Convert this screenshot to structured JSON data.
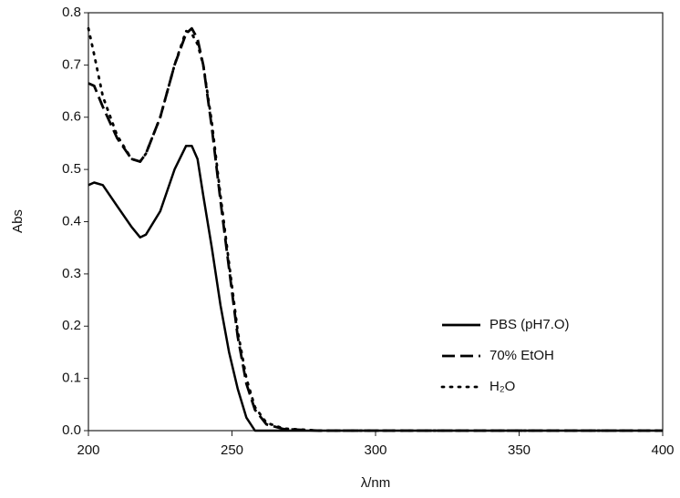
{
  "chart_data": {
    "type": "line",
    "x_label": "λ/nm",
    "y_label": "Abs",
    "x": [
      200,
      202,
      205,
      210,
      215,
      218,
      220,
      225,
      230,
      234,
      236,
      238,
      240,
      243,
      246,
      249,
      252,
      255,
      258,
      262,
      268,
      280,
      300,
      400
    ],
    "series": [
      {
        "name": "PBS (pH7.O)",
        "color": "#000000",
        "line_style": "solid",
        "values": [
          0.47,
          0.475,
          0.47,
          0.43,
          0.39,
          0.37,
          0.375,
          0.42,
          0.5,
          0.545,
          0.545,
          0.52,
          0.45,
          0.35,
          0.24,
          0.15,
          0.08,
          0.025,
          0,
          0,
          0,
          0,
          0,
          0
        ]
      },
      {
        "name": "70% EtOH",
        "color": "#000000",
        "line_style": "dashed",
        "values": [
          0.665,
          0.66,
          0.62,
          0.56,
          0.52,
          0.515,
          0.53,
          0.6,
          0.7,
          0.76,
          0.77,
          0.75,
          0.7,
          0.58,
          0.44,
          0.31,
          0.18,
          0.09,
          0.04,
          0.012,
          0.003,
          0,
          0,
          0
        ]
      },
      {
        "name": "H₂O",
        "color": "#000000",
        "line_style": "dotted",
        "values": [
          0.77,
          0.72,
          0.64,
          0.565,
          0.52,
          0.515,
          0.53,
          0.6,
          0.7,
          0.765,
          0.76,
          0.74,
          0.7,
          0.59,
          0.45,
          0.32,
          0.19,
          0.1,
          0.045,
          0.015,
          0.004,
          0,
          0,
          0
        ]
      }
    ],
    "xlim": [
      200,
      400
    ],
    "xticks": [
      200,
      250,
      300,
      350,
      400
    ],
    "ylim": [
      0,
      0.8
    ],
    "yticks": [
      {
        "value": 0,
        "label": "0.0"
      },
      0.1,
      0.2,
      0.3,
      0.4,
      0.5,
      0.6,
      0.7,
      0.8
    ],
    "grid": false,
    "legend": "lower right"
  }
}
